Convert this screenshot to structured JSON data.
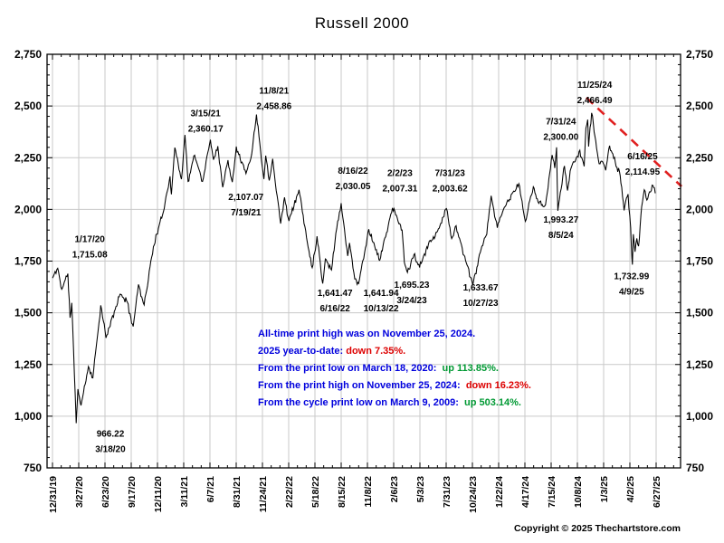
{
  "title": "Russell 2000",
  "copyright": "Copyright © 2025 Thechartstore.com",
  "colors": {
    "blue": "#0000dd",
    "red": "#dd0000",
    "green": "#009933",
    "line": "#000000",
    "trend": "#e02020",
    "grid": "#c9c9c9"
  },
  "commentary": [
    [
      {
        "t": "All-time print high was on November 25, 2024.",
        "c": "blue"
      }
    ],
    [
      {
        "t": "2025 year-to-date: ",
        "c": "blue"
      },
      {
        "t": "down 7.35%.",
        "c": "red"
      }
    ],
    [
      {
        "t": "From the print low on March 18, 2020:  ",
        "c": "blue"
      },
      {
        "t": "up 113.85%.",
        "c": "green"
      }
    ],
    [
      {
        "t": "From the print high on November 25, 2024:  ",
        "c": "blue"
      },
      {
        "t": "down 16.23%.",
        "c": "red"
      }
    ],
    [
      {
        "t": "From the cycle print low on March 9, 2009:  ",
        "c": "blue"
      },
      {
        "t": "up 503.14%.",
        "c": "green"
      }
    ]
  ],
  "chart_data": {
    "type": "line",
    "title": "Russell 2000",
    "xlabel": "",
    "ylabel": "",
    "ylim": [
      750,
      2750
    ],
    "y_tick_step": 250,
    "y_ticks": [
      "750",
      "1,000",
      "1,250",
      "1,500",
      "1,750",
      "2,000",
      "2,250",
      "2,500",
      "2,750"
    ],
    "x_ticks": [
      "12/31/19",
      "3/27/20",
      "6/23/20",
      "9/17/20",
      "12/11/20",
      "3/11/21",
      "6/7/21",
      "8/31/21",
      "11/24/21",
      "2/22/22",
      "5/18/22",
      "8/15/22",
      "11/8/22",
      "2/6/23",
      "5/3/23",
      "7/31/23",
      "10/24/23",
      "1/22/24",
      "4/17/24",
      "7/15/24",
      "10/8/24",
      "1/3/25",
      "4/2/25",
      "6/27/25"
    ],
    "grid": true,
    "legend": "none",
    "td_total": 1376,
    "anchors": [
      [
        0,
        1668
      ],
      [
        12,
        1715.08
      ],
      [
        21,
        1614
      ],
      [
        35,
        1689
      ],
      [
        40,
        1476
      ],
      [
        44,
        1548
      ],
      [
        54,
        966.22
      ],
      [
        58,
        1131
      ],
      [
        65,
        1052
      ],
      [
        82,
        1240
      ],
      [
        92,
        1185
      ],
      [
        110,
        1536
      ],
      [
        122,
        1379
      ],
      [
        154,
        1590
      ],
      [
        169,
        1558
      ],
      [
        184,
        1434
      ],
      [
        196,
        1637
      ],
      [
        209,
        1538
      ],
      [
        230,
        1820
      ],
      [
        251,
        1975
      ],
      [
        268,
        2160
      ],
      [
        271,
        2073
      ],
      [
        279,
        2299
      ],
      [
        294,
        2146
      ],
      [
        302,
        2360.17
      ],
      [
        309,
        2135
      ],
      [
        324,
        2262
      ],
      [
        342,
        2135
      ],
      [
        360,
        2337
      ],
      [
        367,
        2240
      ],
      [
        377,
        2306
      ],
      [
        388,
        2107.07
      ],
      [
        400,
        2238
      ],
      [
        410,
        2132
      ],
      [
        419,
        2304
      ],
      [
        441,
        2173
      ],
      [
        454,
        2267
      ],
      [
        465,
        2458.86
      ],
      [
        482,
        2147
      ],
      [
        486,
        2260
      ],
      [
        494,
        2140
      ],
      [
        502,
        2245
      ],
      [
        520,
        1931
      ],
      [
        529,
        2058
      ],
      [
        539,
        1944
      ],
      [
        562,
        2095
      ],
      [
        581,
        1840
      ],
      [
        592,
        1718
      ],
      [
        603,
        1870
      ],
      [
        616,
        1641.47
      ],
      [
        622,
        1760
      ],
      [
        636,
        1707
      ],
      [
        646,
        1885
      ],
      [
        658,
        2030.05
      ],
      [
        673,
        1775
      ],
      [
        677,
        1838
      ],
      [
        689,
        1664
      ],
      [
        698,
        1641.94
      ],
      [
        721,
        1904
      ],
      [
        746,
        1754
      ],
      [
        775,
        2007.31
      ],
      [
        797,
        1900
      ],
      [
        802,
        1744
      ],
      [
        809,
        1695.23
      ],
      [
        824,
        1781
      ],
      [
        837,
        1719
      ],
      [
        857,
        1831
      ],
      [
        876,
        1889
      ],
      [
        898,
        2003.62
      ],
      [
        910,
        1859
      ],
      [
        920,
        1921
      ],
      [
        938,
        1778
      ],
      [
        958,
        1633.67
      ],
      [
        977,
        1807
      ],
      [
        990,
        1880
      ],
      [
        1000,
        2066
      ],
      [
        1014,
        1911
      ],
      [
        1030,
        2010
      ],
      [
        1063,
        2124
      ],
      [
        1078,
        1942
      ],
      [
        1096,
        2109
      ],
      [
        1107,
        2035
      ],
      [
        1124,
        2022
      ],
      [
        1139,
        2263
      ],
      [
        1145,
        2200
      ],
      [
        1149,
        2300.0
      ],
      [
        1152,
        1993.27
      ],
      [
        1167,
        2210
      ],
      [
        1174,
        2091
      ],
      [
        1182,
        2200
      ],
      [
        1202,
        2286
      ],
      [
        1212,
        2208
      ],
      [
        1216,
        2393
      ],
      [
        1220,
        2434
      ],
      [
        1222,
        2304
      ],
      [
        1229,
        2466.49
      ],
      [
        1246,
        2221
      ],
      [
        1254,
        2230
      ],
      [
        1261,
        2189
      ],
      [
        1270,
        2308
      ],
      [
        1294,
        2163
      ],
      [
        1303,
        1995
      ],
      [
        1312,
        2074
      ],
      [
        1318,
        1910
      ],
      [
        1321,
        1761
      ],
      [
        1322,
        1732.99
      ],
      [
        1324,
        1880
      ],
      [
        1328,
        1795
      ],
      [
        1332,
        1860
      ],
      [
        1336,
        1822
      ],
      [
        1343,
        2012
      ],
      [
        1349,
        2095
      ],
      [
        1355,
        2045
      ],
      [
        1361,
        2085
      ],
      [
        1369,
        2114.95
      ],
      [
        1374,
        2078
      ]
    ],
    "annotations": [
      {
        "td": 85,
        "v": 1820,
        "lines": [
          "1/17/20",
          "1,715.08"
        ]
      },
      {
        "td": 132,
        "v": 880,
        "lines": [
          "966.22",
          "3/18/20"
        ]
      },
      {
        "td": 349,
        "v": 2428,
        "lines": [
          "3/15/21",
          "2,360.17"
        ]
      },
      {
        "td": 505,
        "v": 2537,
        "lines": [
          "11/8/21",
          "2,458.86"
        ]
      },
      {
        "td": 441,
        "v": 2024,
        "lines": [
          "2,107.07",
          "7/19/21"
        ]
      },
      {
        "td": 685,
        "v": 2150,
        "lines": [
          "8/16/22",
          "2,030.05"
        ]
      },
      {
        "td": 792,
        "v": 2140,
        "lines": [
          "2/2/23",
          "2,007.31"
        ]
      },
      {
        "td": 906,
        "v": 2140,
        "lines": [
          "7/31/23",
          "2,003.62"
        ]
      },
      {
        "td": 644,
        "v": 1559,
        "lines": [
          "1,641.47",
          "6/16/22"
        ]
      },
      {
        "td": 749,
        "v": 1559,
        "lines": [
          "1,641.94",
          "10/13/22"
        ]
      },
      {
        "td": 819,
        "v": 1598,
        "lines": [
          "1,695.23",
          "3/24/23"
        ]
      },
      {
        "td": 976,
        "v": 1585,
        "lines": [
          "1,633.67",
          "10/27/23"
        ]
      },
      {
        "td": 1159,
        "v": 1915,
        "lines": [
          "1,993.27",
          "8/5/24"
        ]
      },
      {
        "td": 1159,
        "v": 2389,
        "lines": [
          "7/31/24",
          "2,300.00"
        ]
      },
      {
        "td": 1236,
        "v": 2567,
        "lines": [
          "11/25/24",
          "2,466.49"
        ]
      },
      {
        "td": 1345,
        "v": 2220,
        "lines": [
          "6/16/25",
          "2,114.95"
        ]
      },
      {
        "td": 1320,
        "v": 1641,
        "lines": [
          "1,732.99",
          "4/9/25"
        ]
      }
    ],
    "trendline": {
      "td1": 1217,
      "v1": 2540,
      "td2": 1434,
      "v2": 2111,
      "style": "dashed",
      "color": "#e02020"
    }
  }
}
